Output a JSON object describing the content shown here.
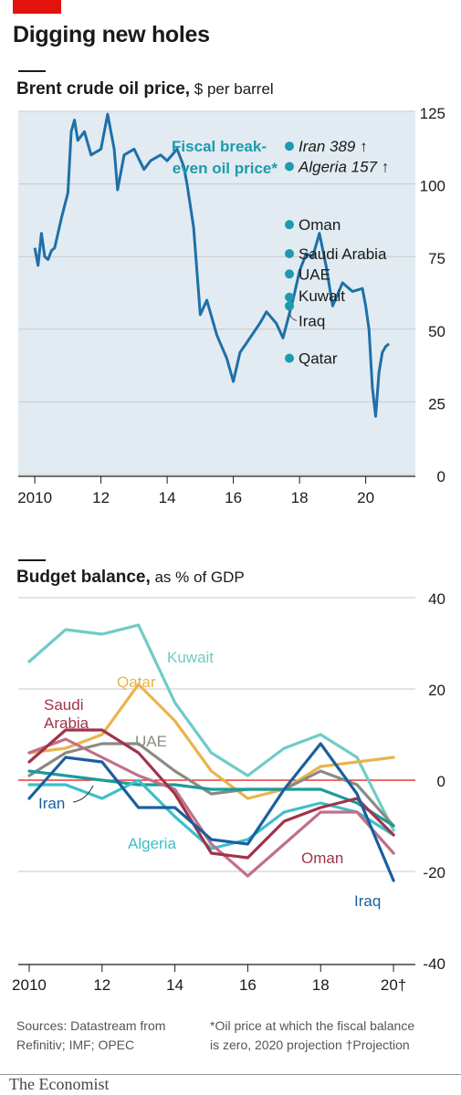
{
  "headline": "Digging new holes",
  "panel1": {
    "title_bold": "Brent crude oil price,",
    "title_rest": " $ per barrel"
  },
  "panel2": {
    "title_bold": "Budget balance,",
    "title_rest": " as % of GDP"
  },
  "footer": {
    "sources_line1": "Sources: Datastream from",
    "sources_line2": "Refinitiv; IMF; OPEC",
    "note_line1": "*Oil price at which the fiscal balance",
    "note_line2": "is zero, 2020 projection   †Projection"
  },
  "brand": "The Economist",
  "colors": {
    "brent": "#1f6fa8",
    "breakeven_dot": "#1d9ab0",
    "breakeven_text": "#1d9ab0",
    "kuwait": "#6fcbc7",
    "qatar": "#e8b44c",
    "saudi": "#a1334b",
    "uae": "#8a8a84",
    "iran": "#1f9a9a",
    "algeria": "#3cc0c9",
    "iraq": "#1a5f9e",
    "oman": "#c07088",
    "zero_line": "#e3120b",
    "grid": "#c9c9c9",
    "panel_bg": "#e1ebf1"
  },
  "chart_data": [
    {
      "type": "line",
      "title": "Brent crude oil price",
      "ylabel": "$ per barrel",
      "ylim": [
        0,
        125
      ],
      "yticks": [
        125,
        100,
        75,
        50,
        25,
        0
      ],
      "xlim": [
        2009.5,
        2021.5
      ],
      "xticks": [
        {
          "value": 2010,
          "label": "2010"
        },
        {
          "value": 2012,
          "label": "12"
        },
        {
          "value": 2014,
          "label": "14"
        },
        {
          "value": 2016,
          "label": "16"
        },
        {
          "value": 2018,
          "label": "18"
        },
        {
          "value": 2020,
          "label": "20"
        }
      ],
      "grid": true,
      "series": [
        {
          "x": [
            2010.0,
            2010.1,
            2010.2,
            2010.3,
            2010.4,
            2010.5,
            2010.6,
            2010.8,
            2011.0,
            2011.1,
            2011.2,
            2011.3,
            2011.5,
            2011.7,
            2012.0,
            2012.2,
            2012.4,
            2012.5,
            2012.7,
            2013.0,
            2013.3,
            2013.5,
            2013.8,
            2014.0,
            2014.3,
            2014.5,
            2014.6,
            2014.8,
            2015.0,
            2015.2,
            2015.5,
            2015.8,
            2016.0,
            2016.2,
            2016.5,
            2016.8,
            2017.0,
            2017.3,
            2017.5,
            2017.8,
            2018.0,
            2018.2,
            2018.4,
            2018.6,
            2018.8,
            2019.0,
            2019.3,
            2019.6,
            2019.9,
            2020.0,
            2020.1,
            2020.2,
            2020.3,
            2020.4,
            2020.5,
            2020.6,
            2020.7
          ],
          "values": [
            78,
            72,
            83,
            75,
            74,
            77,
            78,
            88,
            97,
            118,
            122,
            115,
            118,
            110,
            112,
            124,
            112,
            98,
            110,
            112,
            105,
            108,
            110,
            108,
            112,
            106,
            100,
            85,
            55,
            60,
            48,
            40,
            32,
            42,
            47,
            52,
            56,
            52,
            47,
            60,
            70,
            76,
            75,
            83,
            72,
            58,
            66,
            63,
            64,
            58,
            50,
            30,
            20,
            35,
            42,
            44,
            45
          ]
        }
      ],
      "annotations": {
        "breakeven_title_line1": "Fiscal break-",
        "breakeven_title_line2": "even oil price*",
        "breakeven_points": [
          {
            "country": "Iran 389 ↑",
            "value": 389,
            "offscale": true,
            "italic": true
          },
          {
            "country": "Algeria 157 ↑",
            "value": 157,
            "offscale": true,
            "italic": true
          },
          {
            "country": "Oman",
            "value": 86
          },
          {
            "country": "Saudi Arabia",
            "value": 76
          },
          {
            "country": "UAE",
            "value": 69
          },
          {
            "country": "Kuwait",
            "value": 61
          },
          {
            "country": "Iraq",
            "value": 58
          },
          {
            "country": "Qatar",
            "value": 40
          }
        ]
      }
    },
    {
      "type": "line",
      "title": "Budget balance",
      "ylabel": "as % of GDP",
      "ylim": [
        -40,
        40
      ],
      "yticks": [
        40,
        20,
        0,
        -20,
        -40
      ],
      "xlim": [
        2009.7,
        2020.6
      ],
      "xticks": [
        {
          "value": 2010,
          "label": "2010"
        },
        {
          "value": 2012,
          "label": "12"
        },
        {
          "value": 2014,
          "label": "14"
        },
        {
          "value": 2016,
          "label": "16"
        },
        {
          "value": 2018,
          "label": "18"
        },
        {
          "value": 2020,
          "label": "20†"
        }
      ],
      "grid": true,
      "x": [
        2010,
        2011,
        2012,
        2013,
        2014,
        2015,
        2016,
        2017,
        2018,
        2019,
        2020
      ],
      "series": [
        {
          "name": "Kuwait",
          "color_key": "kuwait",
          "values": [
            26,
            33,
            32,
            34,
            17,
            6,
            1,
            7,
            10,
            5,
            -11
          ]
        },
        {
          "name": "Qatar",
          "color_key": "qatar",
          "values": [
            6,
            7,
            10,
            21,
            13,
            2,
            -4,
            -2,
            3,
            4,
            5
          ]
        },
        {
          "name": "Saudi Arabia",
          "color_key": "saudi",
          "values": [
            4,
            11,
            11,
            6,
            -3,
            -16,
            -17,
            -9,
            -6,
            -4,
            -12
          ]
        },
        {
          "name": "UAE",
          "color_key": "uae",
          "values": [
            1,
            6,
            8,
            8,
            2,
            -3,
            -2,
            -2,
            2,
            -1,
            -10
          ]
        },
        {
          "name": "Iran",
          "color_key": "iran",
          "values": [
            2,
            1,
            0,
            -1,
            -1,
            -2,
            -2,
            -2,
            -2,
            -5,
            -10
          ]
        },
        {
          "name": "Algeria",
          "color_key": "algeria",
          "values": [
            -1,
            -1,
            -4,
            0,
            -8,
            -15,
            -13,
            -7,
            -5,
            -7,
            -12
          ]
        },
        {
          "name": "Iraq",
          "color_key": "iraq",
          "values": [
            -4,
            5,
            4,
            -6,
            -6,
            -13,
            -14,
            -2,
            8,
            -3,
            -22
          ]
        },
        {
          "name": "Oman",
          "color_key": "oman",
          "values": [
            6,
            9,
            5,
            1,
            -2,
            -14,
            -21,
            -14,
            -7,
            -7,
            -16
          ]
        }
      ],
      "labels": {
        "Kuwait": "Kuwait",
        "Qatar": "Qatar",
        "Saudi_line1": "Saudi",
        "Saudi_line2": "Arabia",
        "UAE": "UAE",
        "Iran": "Iran",
        "Algeria": "Algeria",
        "Oman": "Oman",
        "Iraq": "Iraq"
      }
    }
  ]
}
